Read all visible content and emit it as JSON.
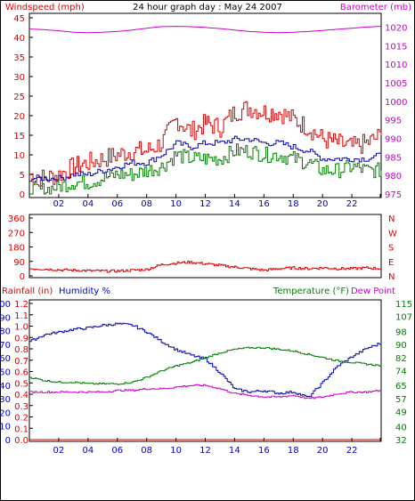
{
  "title": "24 hour graph day : May 24 2007",
  "colors": {
    "wind_gust": "#dd0000",
    "wind_avg": "#0000bb",
    "wind_low": "#008000",
    "barometer": "#cc00cc",
    "direction": "#dd0000",
    "humidity": "#0000bb",
    "temperature": "#008000",
    "dew_point": "#cc00cc",
    "rainfall": "#dd0000",
    "frame": "#000000"
  },
  "chart_data": [
    {
      "type": "line",
      "panel": "wind-barometer",
      "xlabel": "",
      "x_ticks": [
        "02",
        "04",
        "06",
        "08",
        "10",
        "12",
        "14",
        "16",
        "18",
        "20",
        "22"
      ],
      "left_axis": {
        "label": "Windspeed (mph)",
        "ticks": [
          0,
          5,
          10,
          15,
          20,
          25,
          30,
          35,
          40,
          45
        ],
        "range": [
          0,
          45
        ]
      },
      "right_axis": {
        "label": "Barometer (mb)",
        "ticks": [
          975,
          980,
          985,
          990,
          995,
          1000,
          1005,
          1010,
          1015,
          1020
        ],
        "range": [
          975,
          1022.5
        ]
      },
      "x_hours": [
        0,
        1,
        2,
        3,
        4,
        5,
        6,
        7,
        8,
        9,
        10,
        11,
        12,
        13,
        14,
        15,
        16,
        17,
        18,
        19,
        20,
        21,
        22,
        23,
        24
      ],
      "series": [
        {
          "axis": "left",
          "values": [
            5,
            4,
            5,
            7,
            8,
            9,
            10,
            11,
            11,
            13,
            19,
            16,
            18,
            17,
            21,
            22,
            21,
            21,
            19,
            17,
            14,
            13,
            12,
            13,
            15
          ]
        },
        {
          "axis": "left",
          "values": [
            4,
            4,
            4,
            5,
            5,
            6,
            7,
            8,
            8,
            10,
            13,
            12,
            13,
            13,
            14,
            14,
            13,
            13,
            12,
            11,
            9,
            9,
            9,
            9,
            10
          ]
        },
        {
          "axis": "left",
          "values": [
            1,
            1,
            2,
            3,
            3,
            4,
            5,
            5,
            6,
            7,
            10,
            9,
            9,
            9,
            11,
            11,
            10,
            10,
            9,
            8,
            6,
            6,
            7,
            6,
            6
          ]
        },
        {
          "axis": "right",
          "values": [
            1019.5,
            1019.3,
            1019,
            1018.6,
            1018.5,
            1018.6,
            1018.8,
            1019.2,
            1019.7,
            1020.1,
            1020.2,
            1020.1,
            1019.9,
            1019.6,
            1019.2,
            1018.8,
            1018.6,
            1018.5,
            1018.6,
            1018.8,
            1019.1,
            1019.4,
            1019.7,
            1020,
            1020.2
          ]
        }
      ]
    },
    {
      "type": "line",
      "panel": "wind-direction",
      "left_axis": {
        "label": "",
        "ticks": [
          0,
          90,
          180,
          270,
          360
        ],
        "range": [
          0,
          360
        ]
      },
      "right_axis": {
        "label": "",
        "ticks": [
          "N",
          "W",
          "S",
          "E",
          "N"
        ]
      },
      "x_hours": [
        0,
        1,
        2,
        3,
        4,
        5,
        6,
        7,
        8,
        9,
        10,
        11,
        12,
        13,
        14,
        15,
        16,
        17,
        18,
        19,
        20,
        21,
        22,
        23,
        24
      ],
      "series": [
        {
          "axis": "left",
          "values": [
            45,
            42,
            38,
            35,
            32,
            30,
            30,
            35,
            40,
            70,
            80,
            85,
            75,
            65,
            55,
            45,
            35,
            45,
            50,
            45,
            50,
            45,
            45,
            50,
            45
          ]
        }
      ]
    },
    {
      "type": "line",
      "panel": "humidity-temperature",
      "xlabel": "",
      "x_ticks": [
        "02",
        "04",
        "06",
        "08",
        "10",
        "12",
        "14",
        "16",
        "18",
        "20",
        "22"
      ],
      "left_axis_outer": {
        "label": "Rainfall (in)",
        "ticks": [
          0.0,
          0.1,
          0.2,
          0.3,
          0.4,
          0.5,
          0.6,
          0.7,
          0.8,
          0.9,
          1.0,
          1.1,
          1.2
        ],
        "range": [
          0,
          1.2
        ]
      },
      "left_axis_inner": {
        "label": "Humidity %",
        "ticks": [
          0,
          10,
          20,
          30,
          40,
          50,
          60,
          70,
          80,
          90,
          100
        ],
        "range": [
          0,
          100
        ]
      },
      "right_axis": {
        "label_parts": [
          "Temperature (°F)",
          "Dew Point"
        ],
        "ticks": [
          32,
          40,
          49,
          57,
          65,
          74,
          82,
          90,
          98,
          107,
          115
        ],
        "range": [
          32,
          115
        ]
      },
      "x_hours": [
        0,
        1,
        2,
        3,
        4,
        5,
        6,
        7,
        8,
        9,
        10,
        11,
        12,
        13,
        14,
        15,
        16,
        17,
        18,
        19,
        20,
        21,
        22,
        23,
        24
      ],
      "series": [
        {
          "axis": "inner",
          "values": [
            72,
            77,
            79,
            81,
            82,
            84,
            85,
            84,
            79,
            72,
            66,
            62,
            59,
            49,
            37,
            35,
            36,
            34,
            35,
            31,
            42,
            54,
            61,
            67,
            71
          ]
        },
        {
          "axis": "right",
          "values": [
            70,
            68,
            67,
            67,
            66,
            66,
            66,
            67,
            70,
            74,
            77,
            79,
            82,
            85,
            87,
            88,
            88,
            87,
            86,
            84,
            82,
            80,
            79,
            78,
            77
          ]
        },
        {
          "axis": "right",
          "values": [
            61,
            61,
            61,
            61,
            61,
            61,
            62,
            62,
            63,
            63,
            64,
            65,
            65,
            63,
            60,
            59,
            58,
            58,
            59,
            57,
            58,
            60,
            61,
            61,
            62
          ]
        },
        {
          "axis": "outer",
          "values": [
            0,
            0,
            0,
            0,
            0,
            0,
            0,
            0,
            0,
            0,
            0,
            0,
            0,
            0,
            0,
            0,
            0,
            0,
            0,
            0,
            0,
            0,
            0,
            0,
            0
          ]
        }
      ]
    }
  ]
}
